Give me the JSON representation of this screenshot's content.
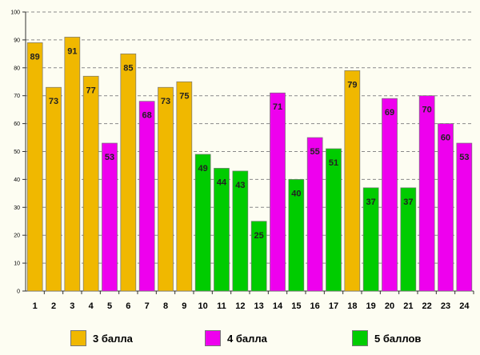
{
  "chart_data": {
    "type": "bar",
    "title": "",
    "xlabel": "",
    "ylabel": "",
    "ylim": [
      0,
      100
    ],
    "yticks": [
      0,
      10,
      20,
      30,
      40,
      50,
      60,
      70,
      80,
      90,
      100
    ],
    "grid": true,
    "categories": [
      "1",
      "2",
      "3",
      "4",
      "5",
      "6",
      "7",
      "8",
      "9",
      "10",
      "11",
      "12",
      "13",
      "14",
      "15",
      "16",
      "17",
      "18",
      "19",
      "20",
      "21",
      "22",
      "23",
      "24"
    ],
    "values": [
      89,
      73,
      91,
      77,
      53,
      85,
      68,
      73,
      75,
      49,
      44,
      43,
      25,
      71,
      40,
      55,
      51,
      79,
      37,
      69,
      37,
      70,
      60,
      53
    ],
    "groups": [
      "g3",
      "g3",
      "g3",
      "g3",
      "g4",
      "g3",
      "g4",
      "g3",
      "g3",
      "g5",
      "g5",
      "g5",
      "g5",
      "g4",
      "g5",
      "g4",
      "g5",
      "g3",
      "g5",
      "g4",
      "g5",
      "g4",
      "g4",
      "g4"
    ],
    "legend_position": "bottom",
    "legend": [
      {
        "key": "g3",
        "label": "3 балла",
        "color": "#f0b800"
      },
      {
        "key": "g4",
        "label": "4 балла",
        "color": "#ee00ee"
      },
      {
        "key": "g5",
        "label": "5 баллов",
        "color": "#00cc00"
      }
    ]
  }
}
